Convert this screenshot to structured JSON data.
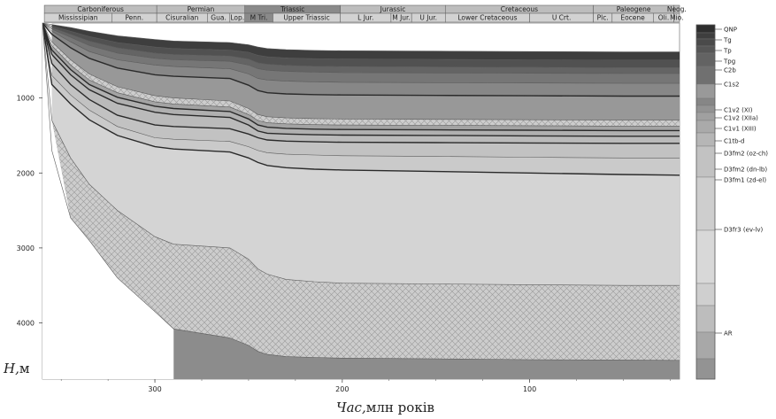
{
  "chart_data": {
    "type": "area",
    "xlabel_var": "Час,",
    "xlabel_unit": "млн років",
    "ylabel_var": "H,",
    "ylabel_unit": "м",
    "xlim": [
      360,
      20
    ],
    "ylim": [
      0,
      4750
    ],
    "x_ticks": [
      "300",
      "200",
      "100"
    ],
    "y_ticks": [
      "1000",
      "2000",
      "3000",
      "4000"
    ],
    "periods": [
      {
        "name": "Carboniferous",
        "start": 359,
        "end": 299
      },
      {
        "name": "Permian",
        "start": 299,
        "end": 252
      },
      {
        "name": "Triassic",
        "start": 252,
        "end": 201
      },
      {
        "name": "Jurassic",
        "start": 201,
        "end": 145
      },
      {
        "name": "Cretaceous",
        "start": 145,
        "end": 66
      },
      {
        "name": "Paleogene",
        "start": 66,
        "end": 23
      },
      {
        "name": "Neog.",
        "start": 23,
        "end": 5
      }
    ],
    "epochs": [
      {
        "name": "Mississipian",
        "start": 359,
        "end": 323
      },
      {
        "name": "Penn.",
        "start": 323,
        "end": 299
      },
      {
        "name": "Cisuralian",
        "start": 299,
        "end": 272
      },
      {
        "name": "Gua.",
        "start": 272,
        "end": 260
      },
      {
        "name": "Lop.",
        "start": 260,
        "end": 252
      },
      {
        "name": "M Tri.",
        "start": 252,
        "end": 237
      },
      {
        "name": "Upper Triassic",
        "start": 237,
        "end": 201
      },
      {
        "name": "L Jur.",
        "start": 201,
        "end": 174
      },
      {
        "name": "M Jur.",
        "start": 174,
        "end": 163
      },
      {
        "name": "U Jur.",
        "start": 163,
        "end": 145
      },
      {
        "name": "Lower Cretaceous",
        "start": 145,
        "end": 100
      },
      {
        "name": "U Crt.",
        "start": 100,
        "end": 66
      },
      {
        "name": "Plc.",
        "start": 66,
        "end": 56
      },
      {
        "name": "Eocene",
        "start": 56,
        "end": 34
      },
      {
        "name": "Oli.",
        "start": 34,
        "end": 23
      },
      {
        "name": "Mio.",
        "start": 23,
        "end": 5
      }
    ],
    "x_nodes": [
      360,
      355,
      345,
      335,
      320,
      300,
      290,
      260,
      250,
      245,
      240,
      230,
      215,
      200,
      150,
      100,
      50,
      20
    ],
    "lines": [
      {
        "heavy": false,
        "depths": [
          0,
          20,
          60,
          110,
          170,
          220,
          240,
          260,
          290,
          320,
          340,
          355,
          365,
          370,
          375,
          380,
          385,
          385
        ]
      },
      {
        "heavy": false,
        "depths": [
          0,
          40,
          110,
          180,
          260,
          320,
          340,
          360,
          390,
          430,
          450,
          465,
          475,
          480,
          485,
          490,
          495,
          495
        ]
      },
      {
        "heavy": false,
        "depths": [
          0,
          60,
          150,
          240,
          330,
          400,
          420,
          440,
          480,
          530,
          550,
          565,
          575,
          580,
          585,
          590,
          595,
          595
        ]
      },
      {
        "heavy": false,
        "depths": [
          0,
          80,
          190,
          300,
          400,
          470,
          490,
          510,
          560,
          610,
          630,
          645,
          655,
          660,
          665,
          670,
          675,
          675
        ]
      },
      {
        "heavy": false,
        "depths": [
          0,
          110,
          250,
          380,
          490,
          560,
          580,
          610,
          680,
          740,
          760,
          775,
          785,
          790,
          795,
          800,
          805,
          805
        ]
      },
      {
        "heavy": true,
        "depths": [
          0,
          150,
          330,
          470,
          600,
          690,
          710,
          740,
          830,
          900,
          930,
          945,
          955,
          960,
          965,
          970,
          975,
          975
        ]
      },
      {
        "heavy": false,
        "depths": [
          0,
          250,
          490,
          680,
          850,
          970,
          1000,
          1040,
          1140,
          1220,
          1250,
          1265,
          1275,
          1280,
          1285,
          1290,
          1295,
          1295
        ]
      },
      {
        "heavy": false,
        "depths": [
          0,
          300,
          560,
          760,
          930,
          1050,
          1080,
          1120,
          1220,
          1300,
          1330,
          1345,
          1355,
          1360,
          1365,
          1370,
          1375,
          1375
        ]
      },
      {
        "heavy": true,
        "depths": [
          0,
          360,
          620,
          820,
          990,
          1110,
          1140,
          1180,
          1280,
          1360,
          1390,
          1405,
          1415,
          1420,
          1425,
          1430,
          1435,
          1435
        ]
      },
      {
        "heavy": true,
        "depths": [
          0,
          420,
          690,
          890,
          1070,
          1190,
          1220,
          1260,
          1360,
          1440,
          1470,
          1480,
          1490,
          1495,
          1500,
          1505,
          1510,
          1510
        ]
      },
      {
        "heavy": true,
        "depths": [
          0,
          540,
          820,
          1020,
          1230,
          1360,
          1380,
          1410,
          1480,
          1530,
          1560,
          1575,
          1585,
          1590,
          1595,
          1600,
          1605,
          1605
        ]
      },
      {
        "heavy": false,
        "depths": [
          0,
          700,
          960,
          1160,
          1380,
          1530,
          1550,
          1580,
          1650,
          1700,
          1730,
          1750,
          1760,
          1770,
          1780,
          1790,
          1800,
          1800
        ]
      },
      {
        "heavy": true,
        "depths": [
          0,
          820,
          1080,
          1290,
          1500,
          1650,
          1680,
          1720,
          1800,
          1860,
          1900,
          1930,
          1950,
          1960,
          1980,
          2000,
          2020,
          2030
        ]
      },
      {
        "heavy": false,
        "depths": [
          0,
          1300,
          1800,
          2150,
          2500,
          2850,
          2950,
          3000,
          3150,
          3280,
          3350,
          3420,
          3450,
          3470,
          3480,
          3490,
          3500,
          3500
        ]
      },
      {
        "heavy": false,
        "depths": [
          0,
          1700,
          2600,
          2900,
          3400,
          3850,
          4080,
          4200,
          4300,
          4380,
          4420,
          4450,
          4460,
          4470,
          4480,
          4490,
          4495,
          4500
        ]
      }
    ],
    "legend": [
      {
        "label": "QNP",
        "color": "#3a3a3a"
      },
      {
        "label": "Tg",
        "color": "#4a4a4a"
      },
      {
        "label": "Tp",
        "color": "#5a5a5a"
      },
      {
        "label": "Tpg",
        "color": "#6a6a6a"
      },
      {
        "label": "C2b",
        "color": "#7c7c7c"
      },
      {
        "label": "C1s2",
        "color": "#a8a8a8"
      },
      {
        "label": "C1v2 (XI)",
        "color": "#8e8e8e"
      },
      {
        "label": "C1v2 (XIIa)",
        "color": "#9a9a9a"
      },
      {
        "label": "C1v1 (XIII)",
        "color": "#a6a6a6"
      },
      {
        "label": "C1tb-d",
        "color": "#b0b0b0"
      },
      {
        "label": "D3fm2 (oz-ch)",
        "color": "#bcbcbc"
      },
      {
        "label": "D3fm2 (dn-lb)",
        "color": "#c4c4c4"
      },
      {
        "label": "D3fm1 (zd-el)",
        "color": "#cccccc"
      },
      {
        "label": "D3fr3 (ev-lv)",
        "color": "#d6d6d6"
      },
      {
        "label": "AR",
        "color": "#a9a9a9"
      }
    ]
  }
}
